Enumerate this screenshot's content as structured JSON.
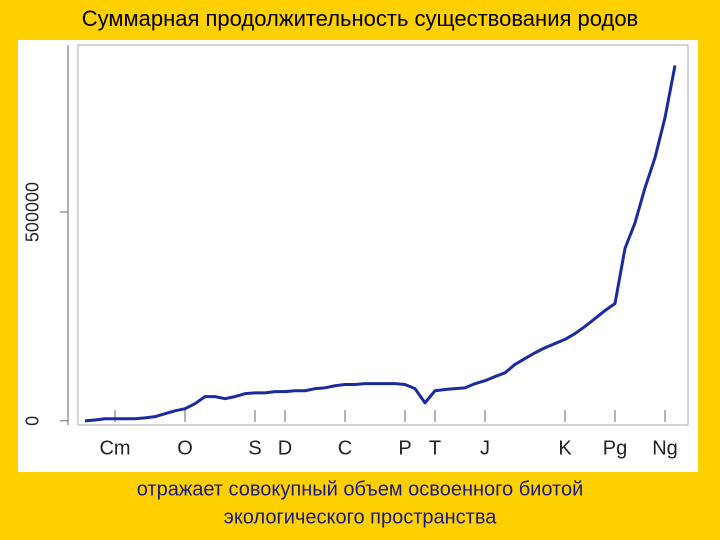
{
  "chart_data": {
    "type": "line",
    "title": "Суммарная продолжительность существования родов",
    "caption": [
      "отражает совокупный объем освоенного биотой",
      "экологического пространства"
    ],
    "categories": [
      null,
      null,
      null,
      "Cm",
      null,
      null,
      null,
      null,
      null,
      null,
      "O",
      null,
      null,
      null,
      null,
      null,
      null,
      "S",
      null,
      null,
      "D",
      null,
      null,
      null,
      null,
      null,
      "C",
      null,
      null,
      null,
      null,
      null,
      "P",
      null,
      null,
      "T",
      null,
      null,
      null,
      null,
      "J",
      null,
      null,
      null,
      null,
      null,
      null,
      null,
      "K",
      null,
      null,
      null,
      null,
      "Pg",
      null,
      null,
      null,
      null,
      "Ng",
      null
    ],
    "series": [
      {
        "color": "#1c2aa0",
        "values": [
          0,
          2000,
          5000,
          5000,
          5000,
          5000,
          7000,
          10000,
          17000,
          24000,
          29000,
          41000,
          58000,
          58000,
          53000,
          58000,
          65000,
          67000,
          67000,
          70000,
          70000,
          72000,
          72000,
          77000,
          79000,
          84000,
          87000,
          87000,
          89000,
          89000,
          89000,
          89000,
          87000,
          77000,
          43000,
          72000,
          75000,
          77000,
          79000,
          89000,
          96000,
          106000,
          115000,
          135000,
          149000,
          163000,
          175000,
          185000,
          195000,
          209000,
          226000,
          245000,
          264000,
          281000,
          413000,
          474000,
          558000,
          630000,
          726000,
          851000
        ]
      }
    ],
    "ylim": [
      -10000,
      900000
    ],
    "yticks": [
      0,
      500000
    ]
  }
}
